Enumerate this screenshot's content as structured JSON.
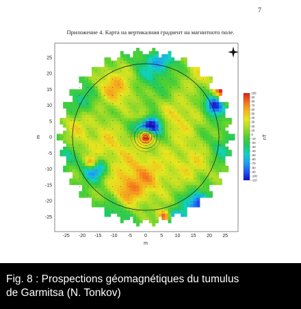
{
  "page": {
    "number": "7",
    "title": "Приложение 4. Карта на вертикалния градиент на магнитното поле."
  },
  "caption": {
    "line1": "Fig. 8 : Prospections géomagnétiques du tumulus",
    "line2": "de Garmitsa (N. Tonkov)"
  },
  "chart_data": {
    "type": "heatmap",
    "title": "Приложение 4. Карта на вертикалния градиент на магнитното поле.",
    "xlabel": "m",
    "ylabel": "m",
    "xlim": [
      -29,
      29
    ],
    "ylim": [
      -29,
      29
    ],
    "x_ticks": [
      -25,
      -20,
      -15,
      -10,
      -5,
      0,
      5,
      10,
      15,
      20,
      25
    ],
    "y_ticks": [
      25,
      20,
      15,
      10,
      5,
      0,
      -5,
      -10,
      -15,
      -20,
      -25
    ],
    "survey_outer_radius": 28,
    "circle_radius": 23,
    "colorbar": {
      "label": "nT",
      "ticks": [
        "100",
        "90",
        "80",
        "70",
        "60",
        "50",
        "40",
        "30",
        "20",
        "10",
        "0",
        "-10",
        "-20",
        "-30",
        "-40",
        "-50",
        "-60",
        "-70",
        "-80",
        "-90",
        "-100",
        "-110"
      ],
      "min": -110,
      "max": 100,
      "colors": [
        "#1010c8",
        "#1e5af0",
        "#1ea0f0",
        "#10d2c8",
        "#20c860",
        "#50d030",
        "#a8dc28",
        "#e6e61e",
        "#f5b41e",
        "#f56e1e",
        "#dc1e1e"
      ]
    },
    "background_value": -5,
    "anomalies": [
      {
        "x": 0,
        "y": 0,
        "value": 100,
        "radius": 1.5
      },
      {
        "x": -1,
        "y": 6,
        "value": 100,
        "radius": 1.8
      },
      {
        "x": -1,
        "y": 4.5,
        "value": -110,
        "radius": 2.2
      },
      {
        "x": 2.5,
        "y": 3.5,
        "value": -110,
        "radius": 2.2
      },
      {
        "x": -16,
        "y": -9.5,
        "value": -110,
        "radius": 2.6
      },
      {
        "x": -17,
        "y": -8,
        "value": 100,
        "radius": 1.5
      },
      {
        "x": 21.5,
        "y": 10,
        "value": -110,
        "radius": 2.0
      },
      {
        "x": 24.5,
        "y": 15,
        "value": 100,
        "radius": 2.0
      },
      {
        "x": 17,
        "y": -21,
        "value": -110,
        "radius": 2.6
      },
      {
        "x": 10,
        "y": -26,
        "value": -110,
        "radius": 2.2
      },
      {
        "x": 6,
        "y": -25,
        "value": 100,
        "radius": 1.5
      },
      {
        "x": -9,
        "y": 16,
        "value": 60,
        "radius": 4.5
      },
      {
        "x": -13,
        "y": -3,
        "value": 40,
        "radius": 6
      },
      {
        "x": 0,
        "y": -12,
        "value": 50,
        "radius": 6
      },
      {
        "x": 10,
        "y": 6,
        "value": 40,
        "radius": 5
      },
      {
        "x": 15,
        "y": -8,
        "value": 35,
        "radius": 5
      },
      {
        "x": -6,
        "y": -17,
        "value": 40,
        "radius": 4
      },
      {
        "x": -22,
        "y": 4,
        "value": 30,
        "radius": 3
      },
      {
        "x": 17,
        "y": 20,
        "value": 30,
        "radius": 4
      },
      {
        "x": -20,
        "y": 12,
        "value": -35,
        "radius": 3
      },
      {
        "x": 0,
        "y": 20,
        "value": -35,
        "radius": 4
      },
      {
        "x": 5,
        "y": 24,
        "value": -60,
        "radius": 2.5
      },
      {
        "x": -10,
        "y": -24,
        "value": -40,
        "radius": 3
      },
      {
        "x": 24,
        "y": -4,
        "value": -35,
        "radius": 3
      },
      {
        "x": -26,
        "y": -6,
        "value": -40,
        "radius": 2.5
      }
    ],
    "north_arrow": true
  }
}
